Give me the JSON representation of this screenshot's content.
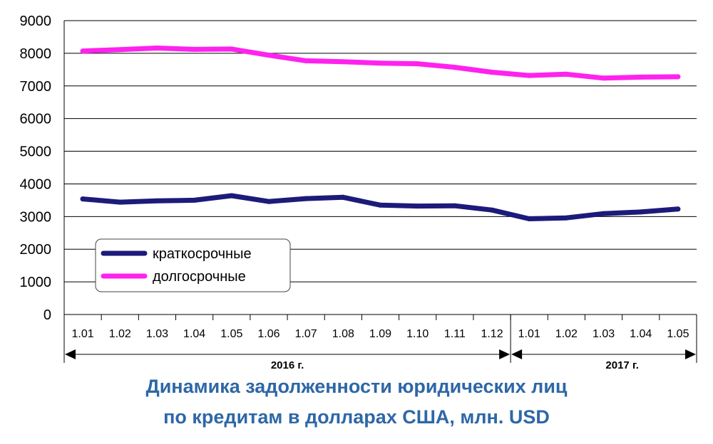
{
  "chart_data": {
    "type": "line",
    "categories": [
      "1.01",
      "1.02",
      "1.03",
      "1.04",
      "1.05",
      "1.06",
      "1.07",
      "1.08",
      "1.09",
      "1.10",
      "1.11",
      "1.12",
      "1.01",
      "1.02",
      "1.03",
      "1.04",
      "1.05"
    ],
    "year_groups": [
      {
        "label": "2016 г.",
        "count": 12
      },
      {
        "label": "2017 г.",
        "count": 5
      }
    ],
    "series": [
      {
        "name": "краткосрочные",
        "color": "#1c1a7a",
        "values": [
          3540,
          3440,
          3480,
          3500,
          3640,
          3460,
          3550,
          3590,
          3350,
          3320,
          3330,
          3200,
          2930,
          2960,
          3090,
          3140,
          3230
        ]
      },
      {
        "name": "долгосрочные",
        "color": "#ff22ee",
        "values": [
          8070,
          8110,
          8160,
          8120,
          8130,
          7940,
          7770,
          7740,
          7700,
          7680,
          7570,
          7420,
          7320,
          7360,
          7240,
          7270,
          7280
        ]
      }
    ],
    "yticks": [
      "0",
      "1000",
      "2000",
      "3000",
      "4000",
      "5000",
      "6000",
      "7000",
      "8000",
      "9000"
    ],
    "ylim": [
      0,
      9000
    ],
    "grid": true,
    "legend_position": "bottom-left",
    "title_lines": [
      "Динамика задолженности юридических лиц",
      "по кредитам в долларах США, млн. USD"
    ]
  }
}
